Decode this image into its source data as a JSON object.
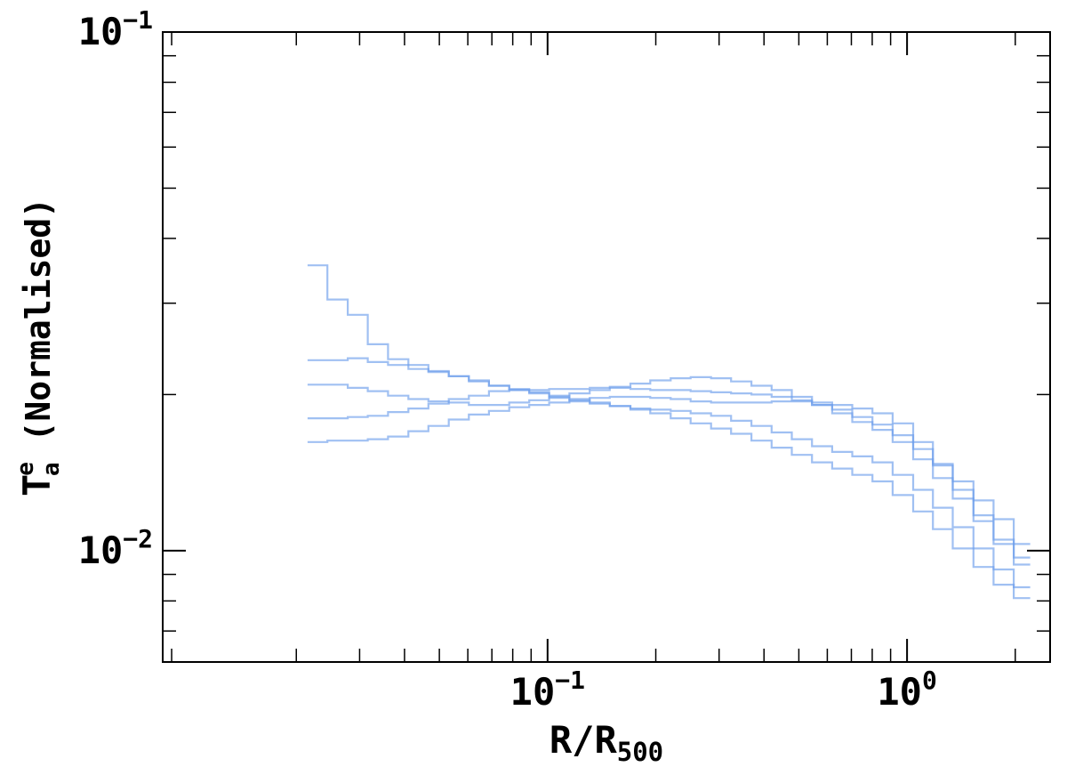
{
  "chart_data": {
    "type": "line",
    "xscale": "log",
    "yscale": "log",
    "xlim": [
      0.0085,
      2.5
    ],
    "ylim": [
      0.0061,
      0.1
    ],
    "grid": false,
    "xlabel_main": "R/R",
    "xlabel_sub": "500",
    "ylabel_main": "T",
    "ylabel_sup": "e",
    "ylabel_sub": "a",
    "ylabel_rest": " (Normalised)",
    "x_ticks": [
      {
        "value": 0.1,
        "base": "10",
        "exp": "−1"
      },
      {
        "value": 1,
        "base": "10",
        "exp": "0"
      }
    ],
    "y_ticks": [
      {
        "value": 0.01,
        "base": "10",
        "exp": "−2"
      },
      {
        "value": 0.1,
        "base": "10",
        "exp": "−1"
      }
    ],
    "line_color": "#6d9eeb",
    "x": [
      0.0215,
      0.0244,
      0.0278,
      0.0316,
      0.036,
      0.041,
      0.0466,
      0.0531,
      0.0604,
      0.0687,
      0.0782,
      0.0889,
      0.101,
      0.115,
      0.131,
      0.149,
      0.17,
      0.193,
      0.22,
      0.25,
      0.285,
      0.324,
      0.369,
      0.42,
      0.478,
      0.544,
      0.619,
      0.704,
      0.801,
      0.912,
      1.04,
      1.18,
      1.34,
      1.53,
      1.74,
      1.98,
      2.2
    ],
    "series": [
      {
        "values": [
          0.0355,
          0.0305,
          0.0285,
          0.025,
          0.0234,
          0.0228,
          0.0222,
          0.0217,
          0.0212,
          0.0208,
          0.0205,
          0.0202,
          0.0199,
          0.0196,
          0.0193,
          0.019,
          0.0187,
          0.0184,
          0.018,
          0.0176,
          0.0172,
          0.0168,
          0.0163,
          0.0158,
          0.0153,
          0.0148,
          0.0144,
          0.014,
          0.0136,
          0.0128,
          0.0119,
          0.011,
          0.0101,
          0.0093,
          0.0086,
          0.0081,
          0.0081
        ]
      },
      {
        "values": [
          0.0233,
          0.0233,
          0.0235,
          0.0231,
          0.0228,
          0.0224,
          0.0221,
          0.0217,
          0.0213,
          0.0208,
          0.0204,
          0.0201,
          0.0197,
          0.0194,
          0.0192,
          0.019,
          0.0188,
          0.0187,
          0.0186,
          0.0184,
          0.0182,
          0.0178,
          0.0174,
          0.0169,
          0.0164,
          0.0159,
          0.0155,
          0.0152,
          0.0148,
          0.014,
          0.0131,
          0.0121,
          0.0111,
          0.0101,
          0.0092,
          0.0085,
          0.0085
        ]
      },
      {
        "values": [
          0.0209,
          0.0209,
          0.0206,
          0.0203,
          0.0199,
          0.0196,
          0.0194,
          0.0193,
          0.0191,
          0.0191,
          0.0193,
          0.0195,
          0.0198,
          0.0201,
          0.0204,
          0.0207,
          0.021,
          0.0213,
          0.0215,
          0.0216,
          0.0215,
          0.0212,
          0.0208,
          0.0204,
          0.0198,
          0.0191,
          0.0184,
          0.0177,
          0.0171,
          0.0162,
          0.015,
          0.0138,
          0.0126,
          0.0114,
          0.0103,
          0.0094,
          0.0094
        ]
      },
      {
        "values": [
          0.0162,
          0.0163,
          0.0163,
          0.0164,
          0.0166,
          0.017,
          0.0174,
          0.0179,
          0.0183,
          0.0186,
          0.0189,
          0.0191,
          0.0193,
          0.0195,
          0.0197,
          0.0198,
          0.0198,
          0.0197,
          0.0196,
          0.0194,
          0.0193,
          0.0193,
          0.0193,
          0.0194,
          0.0194,
          0.0193,
          0.0191,
          0.0188,
          0.0184,
          0.0176,
          0.0162,
          0.0146,
          0.0131,
          0.0117,
          0.0105,
          0.0097,
          0.0097
        ]
      },
      {
        "values": [
          0.018,
          0.018,
          0.0181,
          0.0182,
          0.0185,
          0.0188,
          0.0192,
          0.0196,
          0.0199,
          0.0203,
          0.0204,
          0.0204,
          0.0205,
          0.0205,
          0.0206,
          0.0206,
          0.0205,
          0.0204,
          0.0204,
          0.0203,
          0.0202,
          0.0201,
          0.02,
          0.0198,
          0.0195,
          0.0191,
          0.0187,
          0.0181,
          0.0175,
          0.0167,
          0.0157,
          0.0147,
          0.0136,
          0.0125,
          0.0115,
          0.0103,
          0.0103
        ]
      }
    ]
  }
}
